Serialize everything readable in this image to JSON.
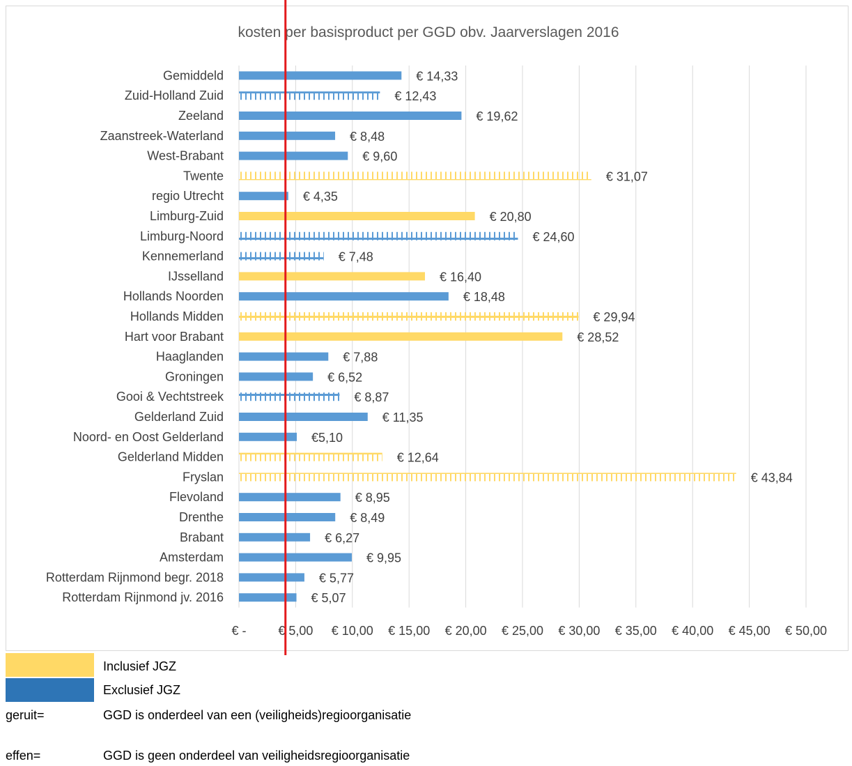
{
  "chart_data": {
    "type": "bar",
    "title": "kosten per basisproduct per GGD obv. Jaarverslagen 2016",
    "orientation": "horizontal",
    "categories": [
      "Gemiddeld",
      "Zuid-Holland Zuid",
      "Zeeland",
      "Zaanstreek-Waterland",
      "West-Brabant",
      "Twente",
      "regio Utrecht",
      "Limburg-Zuid",
      "Limburg-Noord",
      "Kennemerland",
      "IJsselland",
      "Hollands Noorden",
      "Hollands Midden",
      "Hart voor Brabant",
      "Haaglanden",
      "Groningen",
      "Gooi & Vechtstreek",
      "Gelderland Zuid",
      "Noord- en Oost Gelderland",
      "Gelderland Midden",
      "Fryslan",
      "Flevoland",
      "Drenthe",
      "Brabant",
      "Amsterdam",
      "Rotterdam Rijnmond begr. 2018",
      "Rotterdam Rijnmond jv. 2016"
    ],
    "values": [
      14.33,
      12.43,
      19.62,
      8.48,
      9.6,
      31.07,
      4.35,
      20.8,
      24.6,
      7.48,
      16.4,
      18.48,
      29.94,
      28.52,
      7.88,
      6.52,
      8.87,
      11.35,
      5.1,
      12.64,
      43.84,
      8.95,
      8.49,
      6.27,
      9.95,
      5.77,
      5.07
    ],
    "data_labels": [
      "€ 14,33",
      "€ 12,43",
      "€ 19,62",
      "€ 8,48",
      "€ 9,60",
      "€ 31,07",
      "€ 4,35",
      "€ 20,80",
      "€ 24,60",
      "€ 7,48",
      "€ 16,40",
      "€ 18,48",
      "€ 29,94",
      "€ 28,52",
      "€ 7,88",
      "€ 6,52",
      "€ 8,87",
      "€ 11,35",
      "€5,10",
      "€ 12,64",
      "€ 43,84",
      "€ 8,95",
      "€ 8,49",
      "€ 6,27",
      "€ 9,95",
      "€ 5,77",
      "€ 5,07"
    ],
    "inclusief_jgz": [
      false,
      false,
      false,
      false,
      false,
      true,
      false,
      true,
      false,
      false,
      true,
      false,
      true,
      true,
      false,
      false,
      false,
      false,
      false,
      true,
      true,
      false,
      false,
      false,
      false,
      false,
      false
    ],
    "geruit": [
      false,
      true,
      false,
      false,
      false,
      true,
      false,
      false,
      true,
      true,
      false,
      false,
      true,
      false,
      false,
      false,
      true,
      false,
      false,
      true,
      true,
      false,
      false,
      false,
      false,
      false,
      false
    ],
    "xlim": [
      0,
      50
    ],
    "x_ticks": [
      0,
      5,
      10,
      15,
      20,
      25,
      30,
      35,
      40,
      45,
      50
    ],
    "x_tick_labels": [
      "€ -",
      "€ 5,00",
      "€ 10,00",
      "€ 15,00",
      "€ 20,00",
      "€ 25,00",
      "€ 30,00",
      "€ 35,00",
      "€ 40,00",
      "€ 45,00",
      "€ 50,00"
    ],
    "grid": true,
    "reference_line": {
      "x": 4.1,
      "color": "#e31a1c"
    }
  },
  "colors": {
    "inclusief": "#ffd966",
    "exclusief": "#5b9bd5",
    "legend_inclusief": "#ffd966",
    "legend_exclusief": "#2e75b6",
    "grid": "#d9d9d9",
    "text": "#404040"
  },
  "legend": {
    "inclusief_label": "Inclusief JGZ",
    "exclusief_label": "Exclusief JGZ",
    "geruit_key": "geruit=",
    "geruit_text": "GGD is onderdeel van een (veiligheids)regioorganisatie",
    "effen_key": "effen=",
    "effen_text": "GGD is geen onderdeel van veiligheidsregioorganisatie"
  }
}
